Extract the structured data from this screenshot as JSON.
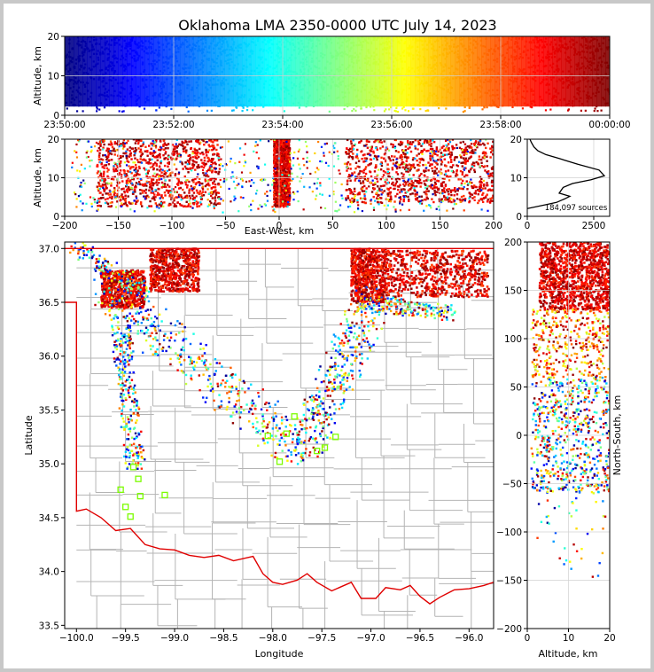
{
  "title": "Oklahoma LMA 2350-0000 UTC July 14, 2023",
  "colors": {
    "colormap": [
      "#00007f",
      "#0000ff",
      "#007fff",
      "#00ffff",
      "#7fff7f",
      "#ffff00",
      "#ff7f00",
      "#ff0000",
      "#7f0000"
    ],
    "state_border": "#e00000",
    "county_lines": "#b4b4b4",
    "station_marker": "#7cfc00",
    "profile_line": "#000000",
    "grid": "#d0d0d0"
  },
  "chart_data": [
    {
      "id": "time-height",
      "type": "scatter",
      "xlabel": "",
      "ylabel": "Altitude, km",
      "x_tick_labels": [
        "23:50:00",
        "23:52:00",
        "23:54:00",
        "23:56:00",
        "23:58:00",
        "00:00:00"
      ],
      "x_range_minutes": [
        0,
        10
      ],
      "y_ticks": [
        0,
        10,
        20
      ],
      "ylim": [
        0,
        20
      ],
      "color_by": "time",
      "grid": true
    },
    {
      "id": "east-west-altitude",
      "type": "scatter",
      "xlabel": "East-West, km",
      "ylabel": "Altitude, km",
      "x_ticks": [
        -200,
        -150,
        -100,
        -50,
        0,
        50,
        100,
        150,
        200
      ],
      "xlim": [
        -200,
        200
      ],
      "y_ticks": [
        0,
        10,
        20
      ],
      "ylim": [
        0,
        20
      ],
      "dense_bands_km": [
        [
          -170,
          -55
        ],
        [
          -5,
          10
        ],
        [
          62,
          200
        ]
      ],
      "grid": true
    },
    {
      "id": "altitude-histogram",
      "type": "line",
      "x_ticks": [
        0,
        2500
      ],
      "xlim": [
        0,
        3100
      ],
      "y_ticks": [
        0,
        10,
        20
      ],
      "ylim": [
        0,
        20
      ],
      "annotation": "184,097 sources",
      "profile": [
        [
          0,
          2
        ],
        [
          700,
          3
        ],
        [
          1100,
          3.6
        ],
        [
          1400,
          4.5
        ],
        [
          1600,
          5.2
        ],
        [
          1200,
          6
        ],
        [
          1350,
          7.5
        ],
        [
          1700,
          8.5
        ],
        [
          2400,
          9.5
        ],
        [
          2900,
          10.5
        ],
        [
          2700,
          12
        ],
        [
          1900,
          13.5
        ],
        [
          1200,
          15
        ],
        [
          700,
          16
        ],
        [
          400,
          17
        ],
        [
          250,
          18
        ],
        [
          150,
          19.2
        ],
        [
          100,
          20
        ]
      ]
    },
    {
      "id": "plan-view",
      "type": "scatter",
      "xlabel": "Longitude",
      "ylabel": "Latitude",
      "x_ticks": [
        -100.0,
        -99.5,
        -99.0,
        -98.5,
        -98.0,
        -97.5,
        -97.0,
        -96.5,
        -96.0
      ],
      "x_tick_labels": [
        "−100.0",
        "−99.5",
        "−99.0",
        "−98.5",
        "−98.0",
        "−97.5",
        "−97.0",
        "−96.5",
        "−96.0"
      ],
      "xlim": [
        -100.12,
        -95.75
      ],
      "y_ticks": [
        33.5,
        34.0,
        34.5,
        35.0,
        35.5,
        36.0,
        36.5,
        37.0
      ],
      "ylim": [
        33.47,
        37.06
      ],
      "stations": [
        [
          -99.42,
          34.97
        ],
        [
          -99.37,
          34.86
        ],
        [
          -99.55,
          34.76
        ],
        [
          -99.5,
          34.6
        ],
        [
          -99.45,
          34.51
        ],
        [
          -99.35,
          34.7
        ],
        [
          -99.1,
          34.71
        ],
        [
          -98.05,
          35.26
        ],
        [
          -97.93,
          35.02
        ],
        [
          -97.78,
          35.44
        ],
        [
          -97.47,
          35.15
        ],
        [
          -97.55,
          35.12
        ],
        [
          -97.36,
          35.25
        ],
        [
          -97.86,
          35.28
        ]
      ],
      "dense_regions": [
        {
          "lon": [
            -99.75,
            -99.3
          ],
          "lat": [
            36.45,
            36.8
          ]
        },
        {
          "lon": [
            -99.25,
            -98.75
          ],
          "lat": [
            36.6,
            37.0
          ]
        },
        {
          "lon": [
            -97.2,
            -96.85
          ],
          "lat": [
            36.5,
            37.0
          ]
        },
        {
          "lon": [
            -96.85,
            -95.8
          ],
          "lat": [
            36.55,
            36.98
          ]
        }
      ]
    },
    {
      "id": "north-south-altitude",
      "type": "scatter",
      "xlabel": "Altitude, km",
      "ylabel": "North-South, km",
      "x_ticks": [
        0,
        10,
        20
      ],
      "xlim": [
        0,
        20
      ],
      "y_ticks": [
        -200,
        -150,
        -100,
        -50,
        0,
        50,
        100,
        150,
        200
      ],
      "y_tick_labels": [
        "−200",
        "−150",
        "−100",
        "−50",
        "0",
        "50",
        "100",
        "150",
        "200"
      ],
      "ylim": [
        -200,
        200
      ],
      "dense_band_km": [
        130,
        200
      ]
    }
  ]
}
